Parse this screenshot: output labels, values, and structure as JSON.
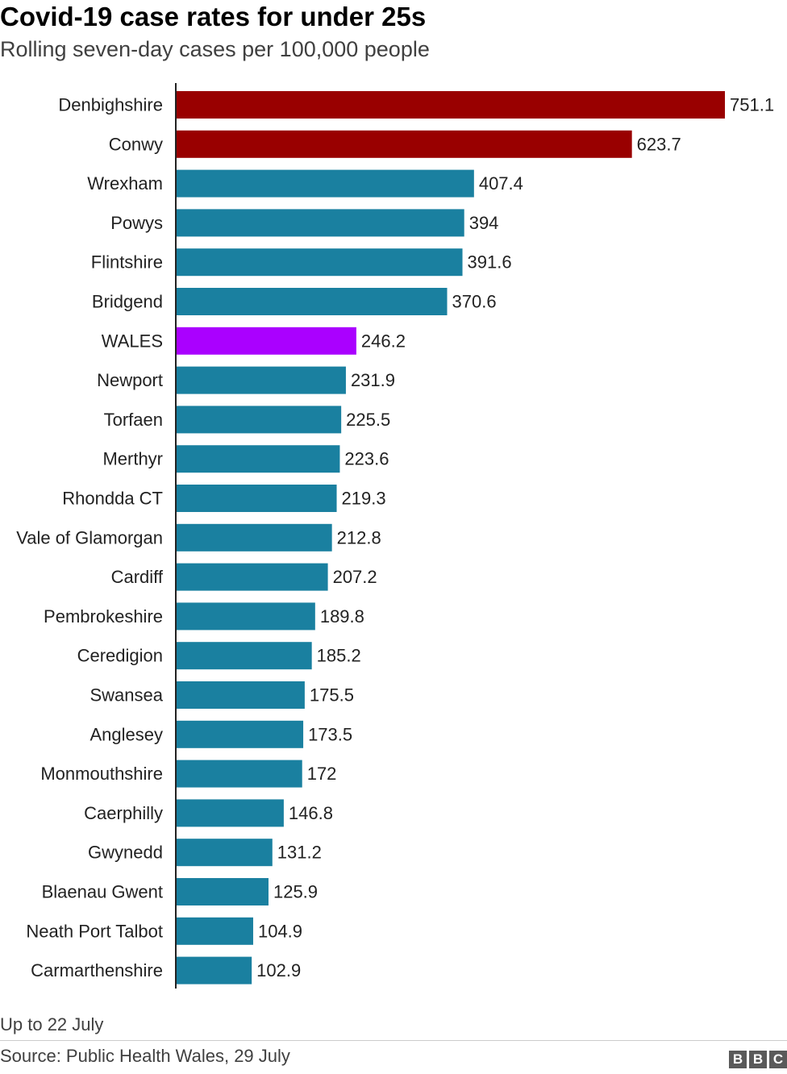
{
  "title": "Covid-19 case rates for under 25s",
  "subtitle": "Rolling seven-day cases per 100,000 people",
  "note": "Up to 22 July",
  "source": "Source: Public Health Wales, 29 July",
  "logo": [
    "B",
    "B",
    "C"
  ],
  "colors": {
    "default": "#1a80a0",
    "highlight": "#990000",
    "wales": "#aa00ff",
    "axis": "#222222"
  },
  "chart_data": {
    "type": "bar",
    "orientation": "horizontal",
    "title": "Covid-19 case rates for under 25s",
    "subtitle": "Rolling seven-day cases per 100,000 people",
    "categories": [
      "Denbighshire",
      "Conwy",
      "Wrexham",
      "Powys",
      "Flintshire",
      "Bridgend",
      "WALES",
      "Newport",
      "Torfaen",
      "Merthyr",
      "Rhondda CT",
      "Vale of Glamorgan",
      "Cardiff",
      "Pembrokeshire",
      "Ceredigion",
      "Swansea",
      "Anglesey",
      "Monmouthshire",
      "Caerphilly",
      "Gwynedd",
      "Blaenau Gwent",
      "Neath Port Talbot",
      "Carmarthenshire"
    ],
    "values": [
      751.1,
      623.7,
      407.4,
      394,
      391.6,
      370.6,
      246.2,
      231.9,
      225.5,
      223.6,
      219.3,
      212.8,
      207.2,
      189.8,
      185.2,
      175.5,
      173.5,
      172,
      146.8,
      131.2,
      125.9,
      104.9,
      102.9
    ],
    "value_labels": [
      "751.1",
      "623.7",
      "407.4",
      "394",
      "391.6",
      "370.6",
      "246.2",
      "231.9",
      "225.5",
      "223.6",
      "219.3",
      "212.8",
      "207.2",
      "189.8",
      "185.2",
      "175.5",
      "173.5",
      "172",
      "146.8",
      "131.2",
      "125.9",
      "104.9",
      "102.9"
    ],
    "bar_colors": [
      "highlight",
      "highlight",
      "default",
      "default",
      "default",
      "default",
      "wales",
      "default",
      "default",
      "default",
      "default",
      "default",
      "default",
      "default",
      "default",
      "default",
      "default",
      "default",
      "default",
      "default",
      "default",
      "default",
      "default"
    ],
    "xlim": [
      0,
      751.1
    ],
    "grid": false,
    "legend": "none"
  }
}
